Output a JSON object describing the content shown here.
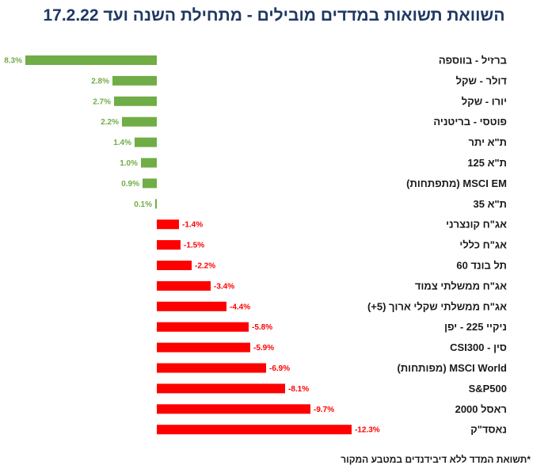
{
  "chart_data": {
    "type": "bar",
    "orientation": "horizontal",
    "title": "השוואת תשואות במדדים מובילים - מתחילת השנה ועד 17.2.22",
    "categories": [
      "ברזיל - בווספה",
      "דולר - שקל",
      "יורו - שקל",
      "פוטסי - בריטניה",
      "ת\"א יתר",
      "ת\"א 125",
      "MSCI EM (מתפתחות)",
      "ת\"א 35",
      "אג\"ח קונצרני",
      "אג\"ח כללי",
      "תל בונד 60",
      "אג\"ח ממשלתי צמוד",
      "אג\"ח ממשלתי שקלי ארוך (5+)",
      "ניקיי 225 - יפן",
      "סין - CSI300",
      "MSCI World (מפותחות)",
      "S&P500",
      "ראסל 2000",
      "נאסד\"ק"
    ],
    "values": [
      8.3,
      2.8,
      2.7,
      2.2,
      1.4,
      1.0,
      0.9,
      0.1,
      -1.4,
      -1.5,
      -2.2,
      -3.4,
      -4.4,
      -5.8,
      -5.9,
      -6.9,
      -8.1,
      -9.7,
      -12.3
    ],
    "value_labels": [
      "8.3%",
      "2.8%",
      "2.7%",
      "2.2%",
      "1.4%",
      "1.0%",
      "0.9%",
      "0.1%",
      "-1.4%",
      "-1.5%",
      "-2.2%",
      "-3.4%",
      "-4.4%",
      "-5.8%",
      "-5.9%",
      "-6.9%",
      "-8.1%",
      "-9.7%",
      "-12.3%"
    ],
    "unit": "%",
    "xlim": [
      -12.3,
      8.3
    ],
    "grid": false,
    "legend": "none",
    "footnote": "*תשואת המדד ללא דיבידנדים במטבע המקור"
  },
  "colors": {
    "positive": "#70ad47",
    "negative": "#ff0000",
    "title": "#1f3864"
  }
}
